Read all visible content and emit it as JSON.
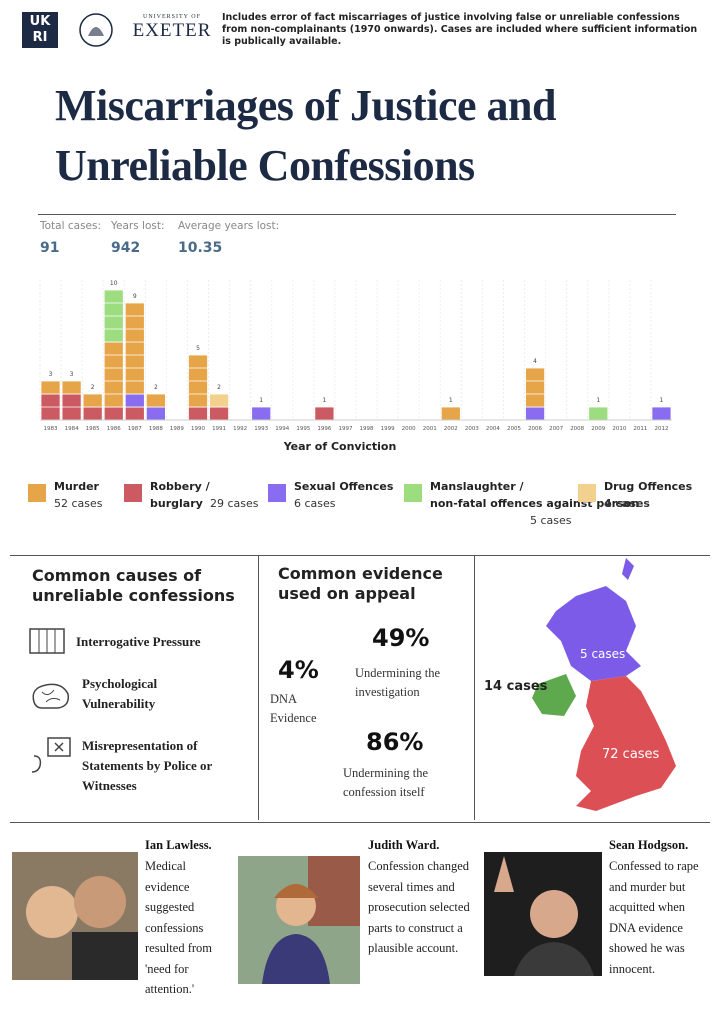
{
  "header": {
    "logo_ukri": [
      "UK",
      "RI"
    ],
    "exeter_small": "UNIVERSITY OF",
    "exeter": "EXETER",
    "note": "Includes error of fact miscarriages of justice involving false or unreliable confessions from non-complainants (1970 onwards). Cases are included where sufficient information is publically available."
  },
  "title": [
    "Miscarriages of Justice and",
    "Unreliable Confessions"
  ],
  "stats": [
    {
      "label": "Total cases:",
      "value": 91
    },
    {
      "label": "Years lost:",
      "value": 942
    },
    {
      "label": "Average years lost:",
      "value": 10.35
    }
  ],
  "chart_data": {
    "type": "bar",
    "stacked": true,
    "xlabel": "Year of Conviction",
    "categories": [
      "1983",
      "1984",
      "1985",
      "1986",
      "1987",
      "1988",
      "1989",
      "1990",
      "1991",
      "1992",
      "1993",
      "1994",
      "1995",
      "1996",
      "1997",
      "1998",
      "1999",
      "2000",
      "2001",
      "2002",
      "2003",
      "2004",
      "2005",
      "2006",
      "2007",
      "2008",
      "2009",
      "2010",
      "2011",
      "2012"
    ],
    "series": [
      {
        "name": "Murder",
        "total_label": "52 cases",
        "color": "#e6a548",
        "values": [
          1,
          1,
          1,
          5,
          7,
          1,
          0,
          4,
          0,
          0,
          0,
          0,
          0,
          0,
          0,
          0,
          0,
          0,
          0,
          1,
          0,
          0,
          0,
          3,
          0,
          0,
          0,
          0,
          0,
          0
        ]
      },
      {
        "name": "Robbery / burglary",
        "total_label": "29 cases",
        "color": "#cc5a62",
        "values": [
          2,
          2,
          1,
          1,
          1,
          0,
          0,
          1,
          1,
          0,
          0,
          0,
          0,
          1,
          0,
          0,
          0,
          0,
          0,
          0,
          0,
          0,
          0,
          0,
          0,
          0,
          0,
          0,
          0,
          0
        ]
      },
      {
        "name": "Sexual Offences",
        "total_label": "6 cases",
        "color": "#8a6cf0",
        "values": [
          0,
          0,
          0,
          0,
          1,
          1,
          0,
          0,
          0,
          0,
          1,
          0,
          0,
          0,
          0,
          0,
          0,
          0,
          0,
          0,
          0,
          0,
          0,
          1,
          0,
          0,
          0,
          0,
          0,
          1
        ]
      },
      {
        "name": "Manslaughter / non-fatal offences against person",
        "total_label": "5 cases",
        "color": "#9edc80",
        "values": [
          0,
          0,
          0,
          4,
          0,
          0,
          0,
          0,
          0,
          0,
          0,
          0,
          0,
          0,
          0,
          0,
          0,
          0,
          0,
          0,
          0,
          0,
          0,
          0,
          0,
          0,
          1,
          0,
          0,
          0
        ]
      },
      {
        "name": "Drug Offences",
        "total_label": "4 cases",
        "color": "#f2d08e",
        "values": [
          0,
          0,
          0,
          0,
          0,
          0,
          0,
          0,
          1,
          0,
          0,
          0,
          0,
          0,
          0,
          0,
          0,
          0,
          0,
          0,
          0,
          0,
          0,
          0,
          0,
          0,
          0,
          0,
          0,
          0
        ]
      }
    ],
    "totals": [
      3,
      3,
      2,
      10,
      9,
      2,
      null,
      5,
      2,
      null,
      1,
      null,
      null,
      1,
      null,
      null,
      null,
      null,
      null,
      1,
      null,
      null,
      null,
      4,
      null,
      null,
      1,
      null,
      null,
      1
    ]
  },
  "causes": {
    "title": "Common causes of unreliable confessions",
    "items": [
      "Interrogative Pressure",
      "Psychological Vulnerability",
      "Misrepresentation of Statements by Police or Witnesses"
    ]
  },
  "evidence": {
    "title": "Common evidence used on appeal",
    "items": [
      {
        "value": "4%",
        "label": "DNA Evidence"
      },
      {
        "value": "49%",
        "label": "Undermining the investigation"
      },
      {
        "value": "86%",
        "label": "Undermining the confession itself"
      }
    ]
  },
  "map": {
    "labels": [
      "14 cases",
      "5 cases",
      "72 cases"
    ]
  },
  "cases": [
    {
      "name": "Ian Lawless.",
      "text": "Medical evidence suggested confessions resulted from 'need for attention.'"
    },
    {
      "name": "Judith Ward.",
      "text": "Confession changed several times and prosecution selected parts to construct a plausible account."
    },
    {
      "name": "Sean Hodgson.",
      "text": "Confessed to rape and murder but acquitted when DNA evidence showed he was innocent."
    }
  ]
}
